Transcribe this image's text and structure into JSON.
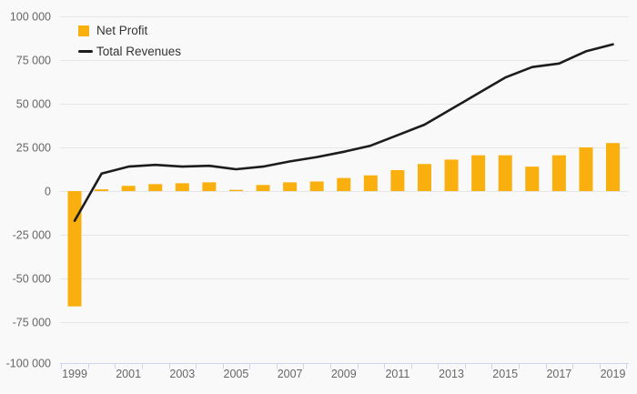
{
  "chart_data": {
    "type": "combo-bar-line",
    "title": "",
    "xlabel": "",
    "ylabel": "",
    "x": [
      1999,
      2000,
      2001,
      2002,
      2003,
      2004,
      2005,
      2006,
      2007,
      2008,
      2009,
      2010,
      2011,
      2012,
      2013,
      2014,
      2015,
      2016,
      2017,
      2018,
      2019
    ],
    "series": [
      {
        "name": "Net Profit",
        "type": "bar",
        "color": "#F9B00E",
        "values": [
          -66000,
          1000,
          3000,
          4000,
          4500,
          5000,
          700,
          3500,
          5000,
          5500,
          7500,
          9000,
          12000,
          15500,
          18000,
          20500,
          20500,
          14000,
          20500,
          25000,
          27500
        ]
      },
      {
        "name": "Total Revenues",
        "type": "line",
        "color": "#1C1C1C",
        "values": [
          -17000,
          10000,
          14000,
          15000,
          14000,
          14500,
          12500,
          14000,
          17000,
          19500,
          22500,
          26000,
          32000,
          38000,
          47000,
          56000,
          65000,
          71000,
          73000,
          80000,
          84000
        ]
      }
    ],
    "ylim": [
      -100000,
      100000
    ],
    "y_ticks": [
      {
        "value": 100000,
        "label": "100 000"
      },
      {
        "value": 75000,
        "label": "75 000"
      },
      {
        "value": 50000,
        "label": "50 000"
      },
      {
        "value": 25000,
        "label": "25 000"
      },
      {
        "value": 0,
        "label": "0"
      },
      {
        "value": -25000,
        "label": "-25 000"
      },
      {
        "value": -50000,
        "label": "-50 000"
      },
      {
        "value": -75000,
        "label": "-75 000"
      },
      {
        "value": -100000,
        "label": "-100 000"
      }
    ],
    "x_tick_labels": [
      "1999",
      "2001",
      "2003",
      "2005",
      "2007",
      "2009",
      "2011",
      "2013",
      "2015",
      "2017",
      "2019"
    ],
    "grid": "horizontal",
    "legend_position": "top-left-inside",
    "grid_color": "#E6E6E6",
    "axis_color": "#CCD6EB",
    "label_color": "#666666",
    "background_color": "#F9F9FA"
  }
}
